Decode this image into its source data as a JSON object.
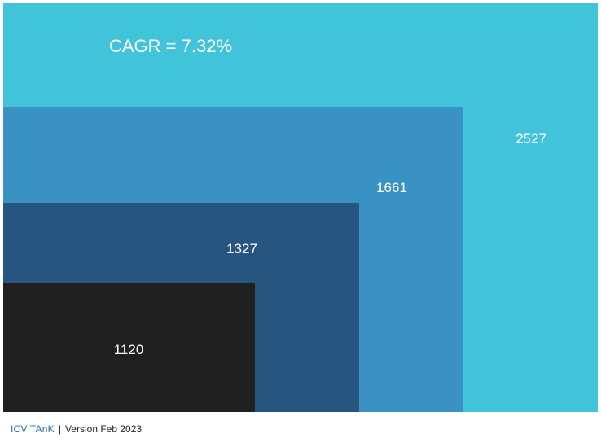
{
  "chart_data": {
    "type": "nested-area",
    "annotation": "CAGR = 7.32%",
    "values": [
      2527,
      1661,
      1327,
      1120
    ],
    "labels": [
      "2527",
      "1661",
      "1327",
      "1120"
    ],
    "colors": [
      "#41c4da",
      "#3a92c4",
      "#26567f",
      "#202020"
    ],
    "label_color": "#ffffff"
  },
  "footer": {
    "brand": "ICV TAnK",
    "separator": "|",
    "version": "Version Feb 2023"
  }
}
